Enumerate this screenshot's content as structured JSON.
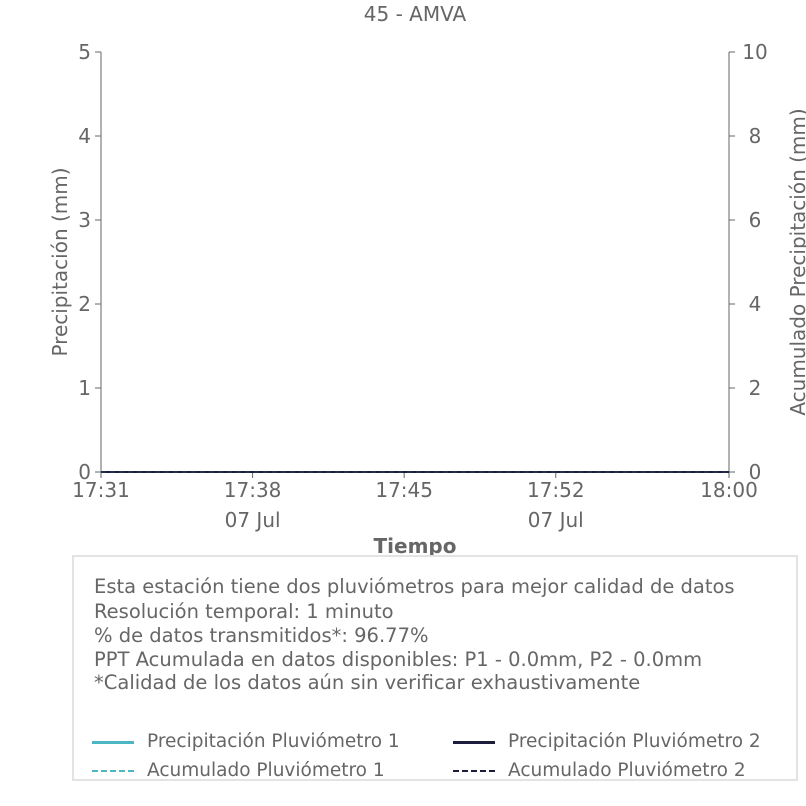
{
  "chart_data": {
    "type": "line",
    "title": "45 - AMVA",
    "xlabel": "Tiempo",
    "ylabel_left": "Precipitación (mm)",
    "ylabel_right": "Acumulado Precipitación (mm)",
    "ylim_left": [
      0,
      5
    ],
    "ylim_right": [
      0,
      10
    ],
    "yticks_left": [
      "0",
      "1",
      "2",
      "3",
      "4",
      "5"
    ],
    "yticks_right": [
      "0",
      "2",
      "4",
      "6",
      "8",
      "10"
    ],
    "xticks": [
      {
        "label": "17:31",
        "minute": 31,
        "date": ""
      },
      {
        "label": "17:38",
        "minute": 38,
        "date": "07 Jul"
      },
      {
        "label": "17:45",
        "minute": 45,
        "date": ""
      },
      {
        "label": "17:52",
        "minute": 52,
        "date": "07 Jul"
      },
      {
        "label": "18:00",
        "minute": 60,
        "date": ""
      }
    ],
    "x_range_minutes": [
      31,
      60
    ],
    "grid": false,
    "series": [
      {
        "name": "Precipitación Pluviómetro 1",
        "axis": "left",
        "style": "solid",
        "color": "#4db6c4",
        "x": [
          31,
          60
        ],
        "values": [
          0,
          0
        ]
      },
      {
        "name": "Precipitación Pluviómetro 2",
        "axis": "left",
        "style": "solid",
        "color": "#1c1c3c",
        "x": [
          31,
          60
        ],
        "values": [
          0,
          0
        ]
      },
      {
        "name": "Acumulado Pluviómetro 1",
        "axis": "right",
        "style": "dashed",
        "color": "#4db6c4",
        "x": [
          31,
          60
        ],
        "values": [
          0,
          0
        ]
      },
      {
        "name": "Acumulado Pluviómetro 2",
        "axis": "right",
        "style": "dashed",
        "color": "#1c1c3c",
        "x": [
          31,
          60
        ],
        "values": [
          0,
          0
        ]
      }
    ]
  },
  "info": {
    "lines": [
      "Esta estación tiene dos pluviómetros para mejor calidad de datos",
      "Resolución temporal: 1 minuto",
      "% de datos transmitidos*: 96.77%",
      "PPT Acumulada en datos disponibles: P1 - 0.0mm, P2 - 0.0mm",
      "*Calidad de los datos aún sin verificar exhaustivamente"
    ]
  }
}
